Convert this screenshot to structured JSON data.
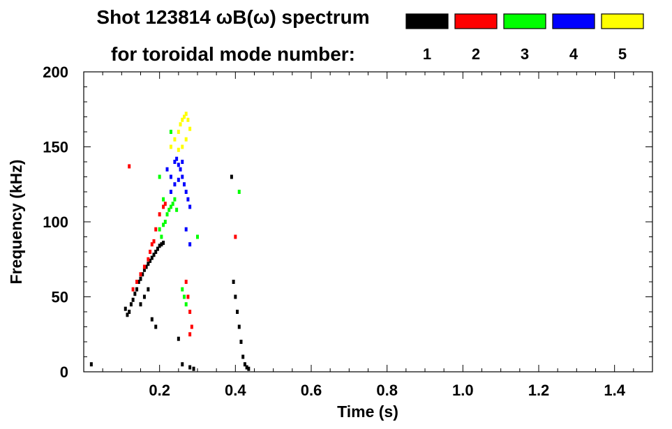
{
  "title_line1": "Shot 123814 ωB(ω) spectrum",
  "title_line2": "for toroidal mode number:",
  "chart_data": {
    "type": "scatter",
    "xlabel": "Time (s)",
    "ylabel": "Frequency (kHz)",
    "xlim": [
      0.0,
      1.5
    ],
    "ylim": [
      0,
      200
    ],
    "xticks": [
      {
        "value": 0.2,
        "label": "0.2"
      },
      {
        "value": 0.4,
        "label": "0.4"
      },
      {
        "value": 0.6,
        "label": "0.6"
      },
      {
        "value": 0.8,
        "label": "0.8"
      },
      {
        "value": 1.0,
        "label": "1.0"
      },
      {
        "value": 1.2,
        "label": "1.2"
      },
      {
        "value": 1.4,
        "label": "1.4"
      }
    ],
    "yticks": [
      {
        "value": 0,
        "label": "0"
      },
      {
        "value": 50,
        "label": "50"
      },
      {
        "value": 100,
        "label": "100"
      },
      {
        "value": 150,
        "label": "150"
      },
      {
        "value": 200,
        "label": "200"
      }
    ],
    "legend": [
      {
        "label": "1",
        "color": "#000000"
      },
      {
        "label": "2",
        "color": "#ff0000"
      },
      {
        "label": "3",
        "color": "#00ff00"
      },
      {
        "label": "4",
        "color": "#0000ff"
      },
      {
        "label": "5",
        "color": "#ffff00"
      }
    ],
    "series": [
      {
        "mode": 1,
        "color": "#000000",
        "points": [
          [
            0.11,
            42
          ],
          [
            0.115,
            38
          ],
          [
            0.12,
            40
          ],
          [
            0.125,
            45
          ],
          [
            0.13,
            48
          ],
          [
            0.135,
            52
          ],
          [
            0.14,
            55
          ],
          [
            0.145,
            60
          ],
          [
            0.15,
            62
          ],
          [
            0.155,
            65
          ],
          [
            0.16,
            68
          ],
          [
            0.165,
            70
          ],
          [
            0.17,
            72
          ],
          [
            0.175,
            74
          ],
          [
            0.18,
            76
          ],
          [
            0.185,
            78
          ],
          [
            0.19,
            80
          ],
          [
            0.195,
            82
          ],
          [
            0.2,
            84
          ],
          [
            0.205,
            85
          ],
          [
            0.21,
            86
          ],
          [
            0.15,
            45
          ],
          [
            0.16,
            50
          ],
          [
            0.17,
            55
          ],
          [
            0.18,
            35
          ],
          [
            0.19,
            30
          ],
          [
            0.25,
            22
          ],
          [
            0.26,
            5
          ],
          [
            0.28,
            3
          ],
          [
            0.29,
            2
          ],
          [
            0.395,
            60
          ],
          [
            0.4,
            50
          ],
          [
            0.405,
            40
          ],
          [
            0.41,
            30
          ],
          [
            0.415,
            20
          ],
          [
            0.42,
            10
          ],
          [
            0.425,
            5
          ],
          [
            0.43,
            3
          ],
          [
            0.435,
            2
          ],
          [
            0.39,
            130
          ],
          [
            0.02,
            5
          ]
        ]
      },
      {
        "mode": 2,
        "color": "#ff0000",
        "points": [
          [
            0.13,
            55
          ],
          [
            0.14,
            60
          ],
          [
            0.15,
            65
          ],
          [
            0.16,
            70
          ],
          [
            0.17,
            75
          ],
          [
            0.175,
            80
          ],
          [
            0.18,
            85
          ],
          [
            0.185,
            87
          ],
          [
            0.19,
            95
          ],
          [
            0.2,
            105
          ],
          [
            0.21,
            110
          ],
          [
            0.215,
            112
          ],
          [
            0.27,
            60
          ],
          [
            0.275,
            50
          ],
          [
            0.28,
            40
          ],
          [
            0.285,
            30
          ],
          [
            0.28,
            25
          ],
          [
            0.12,
            137
          ],
          [
            0.4,
            90
          ]
        ]
      },
      {
        "mode": 3,
        "color": "#00ff00",
        "points": [
          [
            0.2,
            95
          ],
          [
            0.21,
            98
          ],
          [
            0.215,
            100
          ],
          [
            0.22,
            105
          ],
          [
            0.225,
            108
          ],
          [
            0.23,
            110
          ],
          [
            0.235,
            112
          ],
          [
            0.24,
            115
          ],
          [
            0.245,
            108
          ],
          [
            0.21,
            115
          ],
          [
            0.205,
            90
          ],
          [
            0.26,
            55
          ],
          [
            0.265,
            50
          ],
          [
            0.27,
            45
          ],
          [
            0.23,
            160
          ],
          [
            0.2,
            130
          ],
          [
            0.3,
            90
          ],
          [
            0.41,
            120
          ]
        ]
      },
      {
        "mode": 4,
        "color": "#0000ff",
        "points": [
          [
            0.22,
            135
          ],
          [
            0.23,
            130
          ],
          [
            0.24,
            140
          ],
          [
            0.245,
            142
          ],
          [
            0.25,
            138
          ],
          [
            0.255,
            135
          ],
          [
            0.26,
            130
          ],
          [
            0.265,
            125
          ],
          [
            0.27,
            120
          ],
          [
            0.275,
            115
          ],
          [
            0.28,
            110
          ],
          [
            0.24,
            125
          ],
          [
            0.25,
            128
          ],
          [
            0.26,
            140
          ],
          [
            0.23,
            120
          ],
          [
            0.27,
            95
          ],
          [
            0.28,
            85
          ]
        ]
      },
      {
        "mode": 5,
        "color": "#ffff00",
        "points": [
          [
            0.23,
            150
          ],
          [
            0.24,
            155
          ],
          [
            0.25,
            160
          ],
          [
            0.255,
            165
          ],
          [
            0.26,
            168
          ],
          [
            0.265,
            170
          ],
          [
            0.27,
            172
          ],
          [
            0.275,
            168
          ],
          [
            0.28,
            162
          ],
          [
            0.27,
            155
          ],
          [
            0.26,
            150
          ],
          [
            0.25,
            148
          ]
        ]
      }
    ]
  }
}
